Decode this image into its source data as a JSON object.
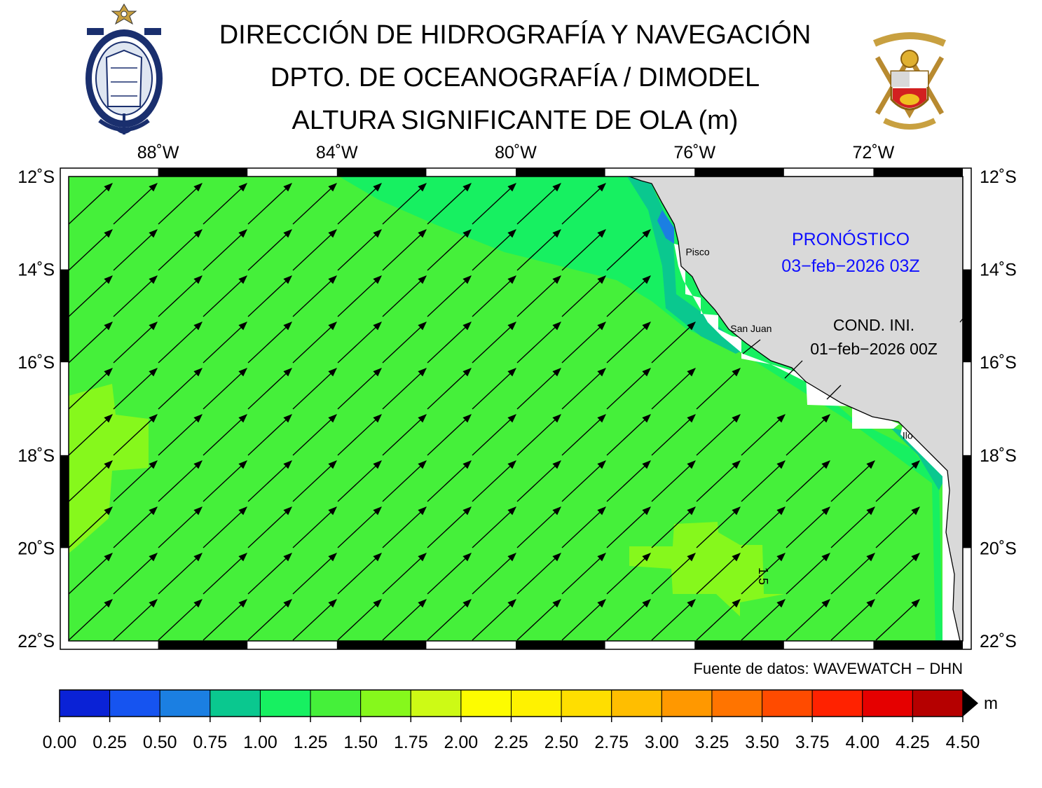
{
  "header": {
    "title_line1": "DIRECCIÓN DE HIDROGRAFÍA Y NAVEGACIÓN",
    "title_line2": "DPTO. DE OCEANOGRAFÍA / DIMODEL",
    "title_line3": "ALTURA SIGNIFICANTE DE OLA (m)"
  },
  "map": {
    "lon_range": [
      -90.0,
      -70.0
    ],
    "lat_range": [
      -22.0,
      -12.0
    ],
    "lon_ticks": [
      "88˚W",
      "84˚W",
      "80˚W",
      "76˚W",
      "72˚W"
    ],
    "lon_tick_values": [
      -88,
      -84,
      -80,
      -76,
      -72
    ],
    "lat_ticks": [
      "12˚S",
      "14˚S",
      "16˚S",
      "18˚S",
      "20˚S",
      "22˚S"
    ],
    "lat_tick_values": [
      -12,
      -14,
      -16,
      -18,
      -20,
      -22
    ],
    "cities": [
      {
        "name": "Pisco",
        "lon": -76.2,
        "lat": -13.7
      },
      {
        "name": "San Juan",
        "lon": -75.2,
        "lat": -15.35
      },
      {
        "name": "Ilo",
        "lon": -71.35,
        "lat": -17.65
      }
    ],
    "contour_label": "1.5",
    "forecast_label": "PRONÓSTICO",
    "forecast_date": "03−feb−2026 03Z",
    "init_label": "COND. INI.",
    "init_date": "01−feb−2026 00Z",
    "wave_direction": "from southwest (arrows pointing northeast)",
    "colors": {
      "land": "#d9d9d9",
      "background_sea": "#45f03a",
      "label_blue": "#1010ff"
    }
  },
  "source_note": "Fuente de datos: WAVEWATCH − DHN",
  "colorbar": {
    "unit": "m",
    "tick_labels": [
      "0.00",
      "0.25",
      "0.50",
      "0.75",
      "1.00",
      "1.25",
      "1.50",
      "1.75",
      "2.00",
      "2.25",
      "2.50",
      "2.75",
      "3.00",
      "3.25",
      "3.50",
      "3.75",
      "4.00",
      "4.25",
      "4.50"
    ],
    "colors": [
      "#0a22d6",
      "#1654f0",
      "#1b7fe2",
      "#0ac88f",
      "#17f061",
      "#45f03a",
      "#86f81c",
      "#cdfa15",
      "#fdfc00",
      "#fff200",
      "#ffde00",
      "#ffbe00",
      "#ff9800",
      "#ff7400",
      "#ff4b00",
      "#ff2200",
      "#e50000",
      "#b50000"
    ]
  },
  "chart_data": {
    "type": "heatmap",
    "title": "ALTURA SIGNIFICANTE DE OLA (m)",
    "variable": "significant wave height (m)",
    "x_range": [
      -90,
      -70
    ],
    "y_range": [
      -22,
      -12
    ],
    "dominant_value_m": "1.25–1.50",
    "regions": [
      {
        "level_m": "1.00–1.25",
        "area": "northern band from 84˚W to the coast near 12˚S–16˚S"
      },
      {
        "level_m": "1.50–1.75",
        "area": "west edge 89.8˚W–88.2˚W, 16.5˚S–20.2˚S"
      },
      {
        "level_m": "1.50–1.75",
        "area": "patch 77.5˚W–74.5˚W, 19.5˚S–21.5˚S"
      },
      {
        "level_m": "0.75–1.00",
        "area": "narrow coastal strip"
      },
      {
        "level_m": "0.50–0.75",
        "area": "coast near 13˚S"
      }
    ]
  }
}
